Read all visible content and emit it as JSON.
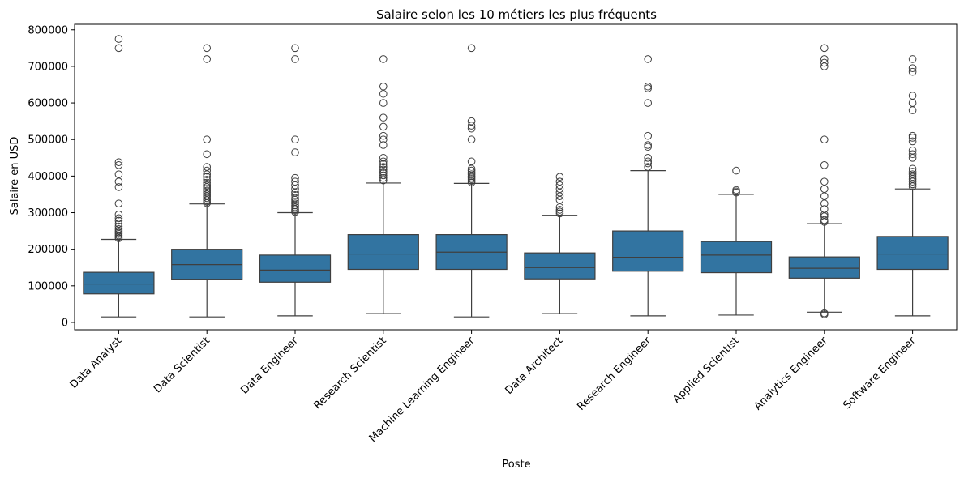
{
  "chart_data": {
    "type": "box",
    "title": "Salaire selon les 10 métiers les plus fréquents",
    "xlabel": "Poste",
    "ylabel": "Salaire en USD",
    "ylim": [
      -20000,
      815000
    ],
    "yticks": [
      0,
      100000,
      200000,
      300000,
      400000,
      500000,
      600000,
      700000,
      800000
    ],
    "ytick_labels": [
      "0",
      "100000",
      "200000",
      "300000",
      "400000",
      "500000",
      "600000",
      "700000",
      "800000"
    ],
    "grid": false,
    "box_color": "#3274a1",
    "categories": [
      "Data Analyst",
      "Data Scientist",
      "Data Engineer",
      "Research Scientist",
      "Machine Learning Engineer",
      "Data Architect",
      "Research Engineer",
      "Applied Scientist",
      "Analytics Engineer",
      "Software Engineer"
    ],
    "boxes": [
      {
        "whislo": 15000,
        "q1": 78000,
        "median": 105000,
        "q3": 137000,
        "whishi": 227000,
        "fliers": [
          230000,
          234000,
          238000,
          242000,
          246000,
          250000,
          255000,
          262000,
          270000,
          278000,
          285000,
          295000,
          325000,
          370000,
          385000,
          405000,
          430000,
          438000,
          750000,
          775000
        ]
      },
      {
        "whislo": 15000,
        "q1": 118000,
        "median": 158000,
        "q3": 200000,
        "whishi": 324000,
        "fliers": [
          326000,
          330000,
          335000,
          340000,
          345000,
          350000,
          355000,
          360000,
          365000,
          370000,
          375000,
          382000,
          390000,
          398000,
          405000,
          415000,
          425000,
          460000,
          500000,
          720000,
          750000
        ]
      },
      {
        "whislo": 18000,
        "q1": 110000,
        "median": 143000,
        "q3": 184000,
        "whishi": 300000,
        "fliers": [
          302000,
          306000,
          310000,
          315000,
          320000,
          325000,
          330000,
          335000,
          340000,
          348000,
          355000,
          365000,
          375000,
          385000,
          395000,
          465000,
          500000,
          720000,
          750000
        ]
      },
      {
        "whislo": 24000,
        "q1": 145000,
        "median": 187000,
        "q3": 240000,
        "whishi": 381000,
        "fliers": [
          388000,
          395000,
          402000,
          408000,
          412000,
          418000,
          425000,
          433000,
          440000,
          450000,
          485000,
          500000,
          510000,
          535000,
          560000,
          600000,
          625000,
          645000,
          720000
        ]
      },
      {
        "whislo": 15000,
        "q1": 145000,
        "median": 192000,
        "q3": 240000,
        "whishi": 380000,
        "fliers": [
          383000,
          387000,
          392000,
          396000,
          400000,
          405000,
          410000,
          415000,
          420000,
          440000,
          500000,
          530000,
          538000,
          550000,
          750000
        ]
      },
      {
        "whislo": 24000,
        "q1": 119000,
        "median": 150000,
        "q3": 190000,
        "whishi": 293000,
        "fliers": [
          298000,
          303000,
          308000,
          315000,
          335000,
          345000,
          355000,
          365000,
          375000,
          385000,
          398000
        ]
      },
      {
        "whislo": 18000,
        "q1": 140000,
        "median": 178000,
        "q3": 250000,
        "whishi": 415000,
        "fliers": [
          425000,
          435000,
          440000,
          450000,
          480000,
          485000,
          510000,
          600000,
          640000,
          645000,
          720000
        ]
      },
      {
        "whislo": 20000,
        "q1": 136000,
        "median": 184000,
        "q3": 221000,
        "whishi": 350000,
        "fliers": [
          355000,
          358000,
          362000,
          415000
        ]
      },
      {
        "whislo": 28000,
        "q1": 121000,
        "median": 148000,
        "q3": 179000,
        "whishi": 270000,
        "fliers": [
          22000,
          25000,
          275000,
          280000,
          290000,
          295000,
          310000,
          325000,
          345000,
          365000,
          385000,
          430000,
          500000,
          700000,
          710000,
          720000,
          750000
        ]
      },
      {
        "whislo": 18000,
        "q1": 145000,
        "median": 187000,
        "q3": 235000,
        "whishi": 365000,
        "fliers": [
          372000,
          378000,
          385000,
          392000,
          398000,
          405000,
          412000,
          420000,
          450000,
          460000,
          470000,
          495000,
          505000,
          510000,
          580000,
          600000,
          620000,
          685000,
          695000,
          720000
        ]
      }
    ]
  }
}
